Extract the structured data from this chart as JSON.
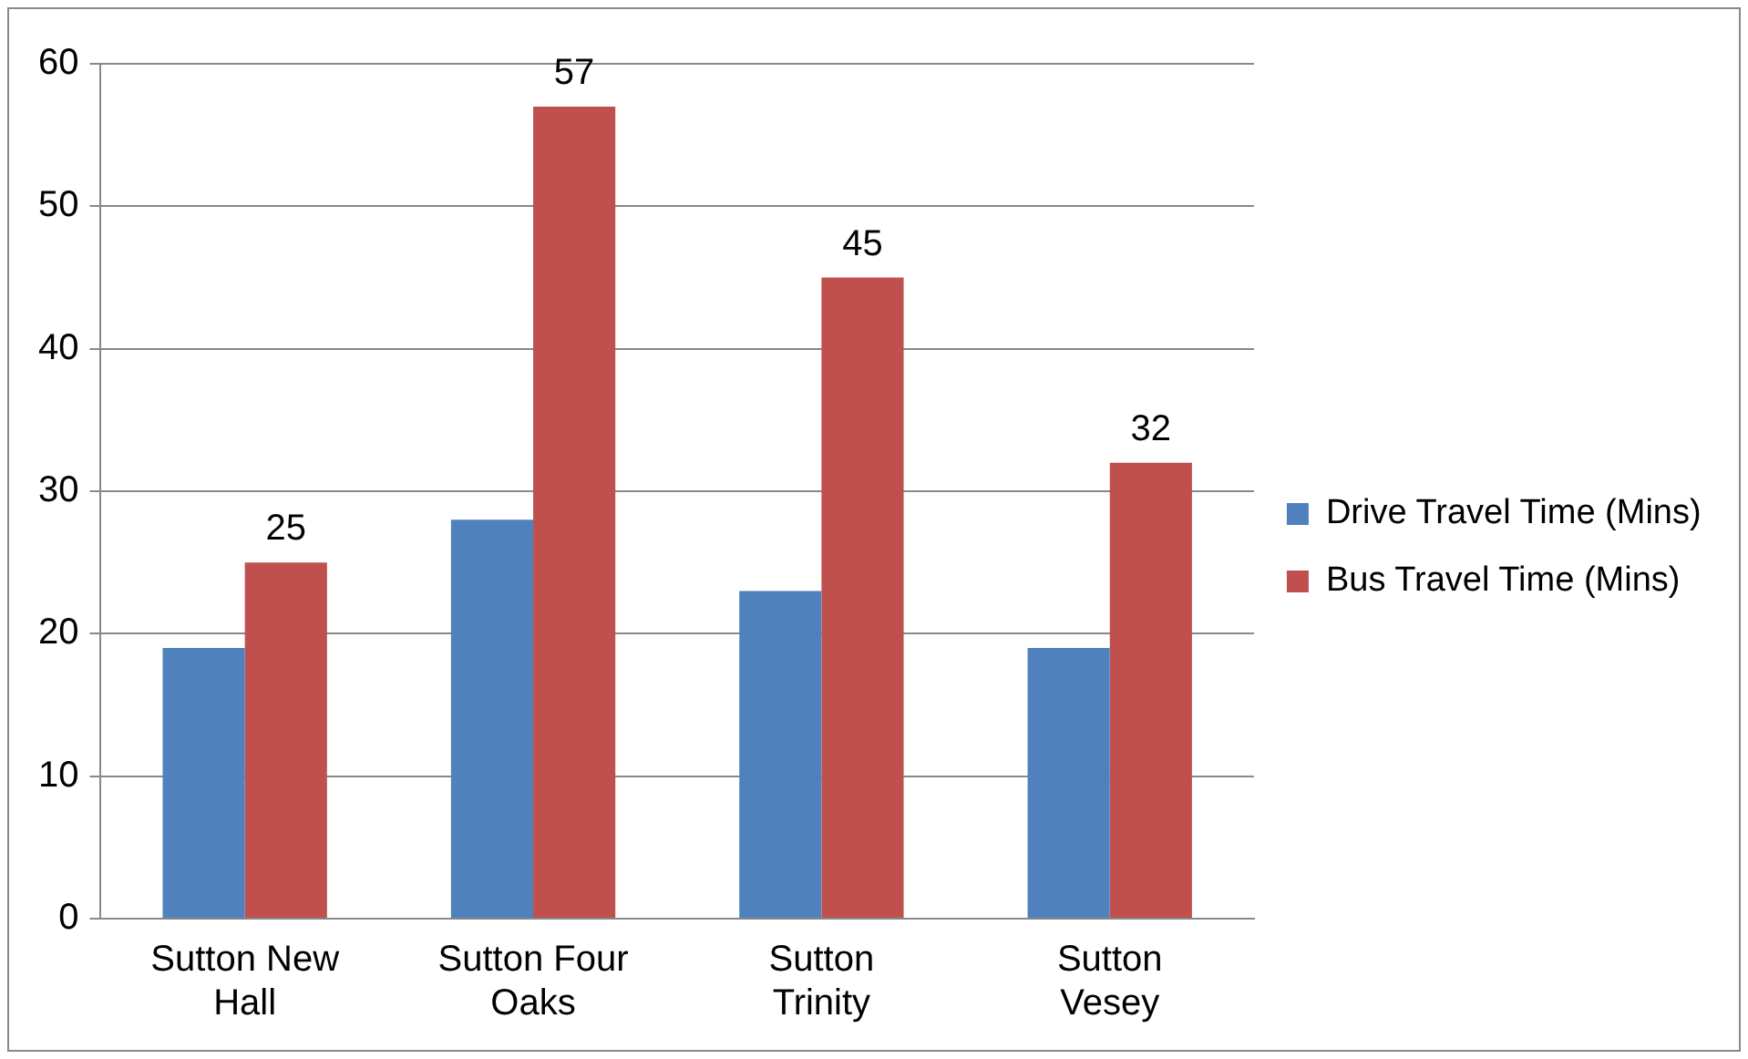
{
  "chart_data": {
    "type": "bar",
    "categories": [
      "Sutton New Hall",
      "Sutton Four Oaks",
      "Sutton Trinity",
      "Sutton Vesey"
    ],
    "series": [
      {
        "name": "Drive Travel Time (Mins)",
        "color": "#4f81bd",
        "values": [
          19,
          28,
          23,
          19
        ]
      },
      {
        "name": "Bus Travel Time (Mins)",
        "color": "#c0504d",
        "values": [
          25,
          57,
          45,
          32
        ],
        "value_labels": [
          "25",
          "57",
          "45",
          "32"
        ]
      }
    ],
    "ylim": [
      0,
      60
    ],
    "yticks": [
      0,
      10,
      20,
      30,
      40,
      50,
      60
    ],
    "grid": "y",
    "legend": "right"
  }
}
